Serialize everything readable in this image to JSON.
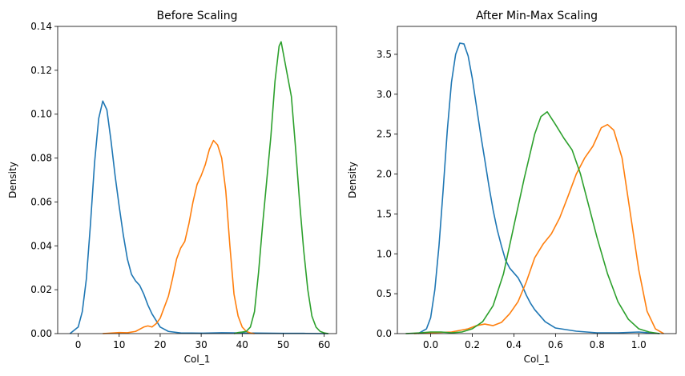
{
  "chart_data": [
    {
      "type": "line",
      "title": "Before Scaling",
      "xlabel": "Col_1",
      "ylabel": "Density",
      "xlim": [
        -5,
        63
      ],
      "ylim": [
        0,
        0.14
      ],
      "xticks": [
        0,
        10,
        20,
        30,
        40,
        50,
        60
      ],
      "xtick_labels": [
        "0",
        "10",
        "20",
        "30",
        "40",
        "50",
        "60"
      ],
      "yticks": [
        0,
        0.02,
        0.04,
        0.06,
        0.08,
        0.1,
        0.12,
        0.14
      ],
      "ytick_labels": [
        "0.00",
        "0.02",
        "0.04",
        "0.06",
        "0.08",
        "0.10",
        "0.12",
        "0.14"
      ],
      "grid": false,
      "series": [
        {
          "color": "#1f77b4",
          "x": [
            -2,
            0,
            1,
            2,
            3,
            4,
            5,
            6,
            7,
            8,
            9,
            10,
            11,
            12,
            13,
            14,
            15,
            16,
            17,
            18,
            19,
            20,
            22,
            25,
            30,
            35,
            40,
            45,
            50,
            55,
            60,
            61
          ],
          "y": [
            0.0,
            0.003,
            0.01,
            0.025,
            0.05,
            0.078,
            0.098,
            0.106,
            0.102,
            0.088,
            0.072,
            0.058,
            0.045,
            0.034,
            0.027,
            0.024,
            0.022,
            0.018,
            0.013,
            0.009,
            0.006,
            0.003,
            0.001,
            0.0003,
            0.0002,
            0.0004,
            0.0003,
            0.0002,
            0.0001,
            0.0001,
            0.0,
            0.0
          ]
        },
        {
          "color": "#ff7f0e",
          "x": [
            6,
            10,
            12,
            14,
            16,
            17,
            18,
            19,
            20,
            21,
            22,
            23,
            24,
            25,
            26,
            27,
            28,
            29,
            30,
            31,
            32,
            33,
            34,
            35,
            36,
            37,
            38,
            39,
            40,
            41,
            42,
            43
          ],
          "y": [
            0.0,
            0.0005,
            0.0004,
            0.001,
            0.003,
            0.0035,
            0.003,
            0.0045,
            0.007,
            0.012,
            0.017,
            0.025,
            0.034,
            0.039,
            0.042,
            0.05,
            0.06,
            0.068,
            0.072,
            0.077,
            0.084,
            0.088,
            0.086,
            0.08,
            0.065,
            0.04,
            0.018,
            0.008,
            0.003,
            0.001,
            0.0003,
            0.0
          ]
        },
        {
          "color": "#2ca02c",
          "x": [
            38,
            39,
            40,
            41,
            42,
            43,
            44,
            45,
            46,
            47,
            48,
            49,
            49.5,
            50,
            51,
            52,
            53,
            54,
            55,
            56,
            57,
            58,
            59,
            60,
            61
          ],
          "y": [
            0.0,
            0.0005,
            0.0007,
            0.001,
            0.003,
            0.01,
            0.028,
            0.05,
            0.07,
            0.09,
            0.115,
            0.131,
            0.133,
            0.128,
            0.118,
            0.108,
            0.085,
            0.06,
            0.038,
            0.02,
            0.008,
            0.003,
            0.001,
            0.0003,
            0.0
          ]
        }
      ]
    },
    {
      "type": "line",
      "title": "After Min-Max Scaling",
      "xlabel": "Col_1",
      "ylabel": "Density",
      "xlim": [
        -0.16,
        1.18
      ],
      "ylim": [
        0,
        3.85
      ],
      "xticks": [
        0,
        0.2,
        0.4,
        0.6,
        0.8,
        1.0
      ],
      "xtick_labels": [
        "0.0",
        "0.2",
        "0.4",
        "0.6",
        "0.8",
        "1.0"
      ],
      "yticks": [
        0,
        0.5,
        1.0,
        1.5,
        2.0,
        2.5,
        3.0,
        3.5
      ],
      "ytick_labels": [
        "0.0",
        "0.5",
        "1.0",
        "1.5",
        "2.0",
        "2.5",
        "3.0",
        "3.5"
      ],
      "grid": false,
      "series": [
        {
          "color": "#1f77b4",
          "x": [
            -0.06,
            -0.02,
            0.0,
            0.02,
            0.04,
            0.06,
            0.08,
            0.1,
            0.12,
            0.14,
            0.16,
            0.18,
            0.2,
            0.22,
            0.24,
            0.26,
            0.28,
            0.3,
            0.32,
            0.34,
            0.36,
            0.38,
            0.4,
            0.42,
            0.44,
            0.46,
            0.48,
            0.5,
            0.55,
            0.6,
            0.7,
            0.8,
            0.9,
            1.0,
            1.1
          ],
          "y": [
            0.0,
            0.06,
            0.2,
            0.55,
            1.1,
            1.8,
            2.55,
            3.15,
            3.5,
            3.64,
            3.63,
            3.48,
            3.2,
            2.85,
            2.5,
            2.18,
            1.85,
            1.55,
            1.3,
            1.1,
            0.92,
            0.82,
            0.76,
            0.7,
            0.6,
            0.48,
            0.38,
            0.3,
            0.15,
            0.07,
            0.03,
            0.01,
            0.01,
            0.02,
            0.0
          ]
        },
        {
          "color": "#ff7f0e",
          "x": [
            -0.08,
            0.0,
            0.1,
            0.18,
            0.22,
            0.26,
            0.3,
            0.34,
            0.38,
            0.42,
            0.46,
            0.5,
            0.54,
            0.58,
            0.62,
            0.66,
            0.7,
            0.74,
            0.78,
            0.82,
            0.85,
            0.88,
            0.92,
            0.96,
            1.0,
            1.04,
            1.08,
            1.12
          ],
          "y": [
            0.0,
            0.01,
            0.02,
            0.06,
            0.1,
            0.12,
            0.1,
            0.14,
            0.25,
            0.4,
            0.65,
            0.95,
            1.12,
            1.25,
            1.45,
            1.72,
            2.0,
            2.2,
            2.35,
            2.58,
            2.62,
            2.55,
            2.2,
            1.5,
            0.8,
            0.28,
            0.06,
            0.0
          ]
        },
        {
          "color": "#2ca02c",
          "x": [
            -0.12,
            -0.05,
            0.0,
            0.05,
            0.1,
            0.15,
            0.2,
            0.25,
            0.3,
            0.35,
            0.4,
            0.45,
            0.5,
            0.53,
            0.56,
            0.6,
            0.64,
            0.68,
            0.72,
            0.76,
            0.8,
            0.85,
            0.9,
            0.95,
            1.0,
            1.05,
            1.1
          ],
          "y": [
            0.0,
            0.01,
            0.02,
            0.02,
            0.01,
            0.02,
            0.06,
            0.15,
            0.35,
            0.75,
            1.35,
            1.95,
            2.5,
            2.72,
            2.78,
            2.62,
            2.45,
            2.3,
            2.0,
            1.6,
            1.2,
            0.75,
            0.4,
            0.18,
            0.06,
            0.02,
            0.0
          ]
        }
      ]
    }
  ]
}
